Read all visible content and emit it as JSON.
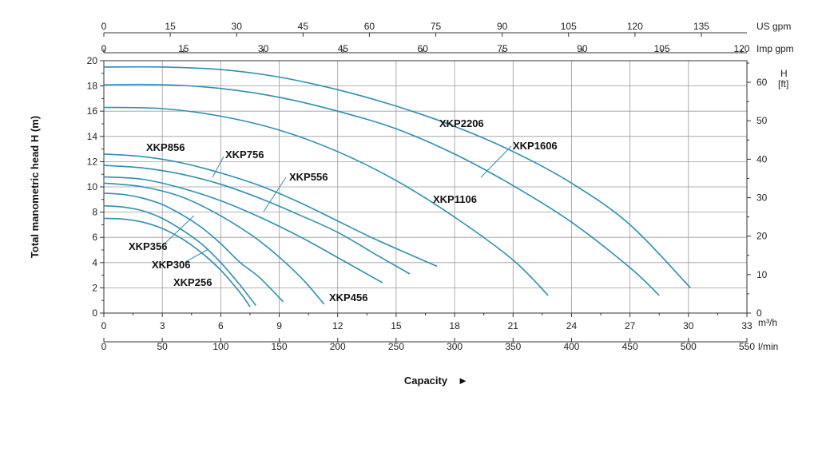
{
  "chart_data": {
    "type": "line",
    "xlabel": "Capacity",
    "ylabel": "Total manometric head H (m)",
    "xlim": [
      0,
      33
    ],
    "ylim": [
      0,
      20
    ],
    "x_unit": "m³/h",
    "x_ticks": [
      0,
      3,
      6,
      9,
      12,
      15,
      18,
      21,
      24,
      27,
      30,
      33
    ],
    "y_ticks": [
      0,
      2,
      4,
      6,
      8,
      10,
      12,
      14,
      16,
      18,
      20
    ],
    "secondary_axes": {
      "lmin": {
        "unit": "l/min",
        "ticks": [
          0,
          50,
          100,
          150,
          200,
          250,
          300,
          350,
          400,
          450,
          500,
          550
        ]
      },
      "us_gpm": {
        "unit": "US gpm",
        "ticks": [
          0,
          15,
          30,
          45,
          60,
          75,
          90,
          105,
          120,
          135
        ]
      },
      "imp_gpm": {
        "unit": "Imp gpm",
        "ticks": [
          0,
          15,
          30,
          45,
          60,
          75,
          90,
          105,
          120
        ]
      },
      "feet": {
        "unit_top": "H",
        "unit_bottom": "[ft]",
        "ticks": [
          0,
          10,
          20,
          30,
          40,
          50,
          60
        ]
      }
    },
    "grid": true,
    "series": [
      {
        "name": "XKP256",
        "x": [
          0,
          1,
          2,
          3,
          4,
          5,
          6,
          7,
          7.5
        ],
        "y": [
          7.5,
          7.45,
          7.2,
          6.7,
          5.9,
          4.8,
          3.4,
          1.6,
          0.5
        ]
      },
      {
        "name": "XKP306",
        "x": [
          0,
          1,
          2,
          3,
          4,
          5,
          6,
          7,
          7.8
        ],
        "y": [
          8.5,
          8.4,
          8.1,
          7.5,
          6.6,
          5.5,
          4.0,
          2.2,
          0.6
        ]
      },
      {
        "name": "XKP356",
        "x": [
          0,
          1,
          2,
          3,
          4,
          5,
          6,
          7,
          8,
          9.2
        ],
        "y": [
          9.5,
          9.4,
          9.1,
          8.6,
          7.8,
          6.8,
          5.5,
          4.0,
          2.8,
          0.9
        ]
      },
      {
        "name": "XKP456",
        "x": [
          0,
          2,
          4,
          6,
          8,
          10,
          11.3
        ],
        "y": [
          10.3,
          10.0,
          9.2,
          7.7,
          5.7,
          3.0,
          0.7
        ]
      },
      {
        "name": "XKP556",
        "x": [
          0,
          2,
          4,
          6,
          8,
          10,
          12,
          14.3
        ],
        "y": [
          10.8,
          10.6,
          9.9,
          8.9,
          7.6,
          6.1,
          4.4,
          2.4
        ]
      },
      {
        "name": "XKP756",
        "x": [
          0,
          2,
          4,
          6,
          8,
          10,
          12,
          14,
          15.7
        ],
        "y": [
          11.7,
          11.5,
          11.0,
          10.2,
          9.1,
          7.8,
          6.4,
          4.6,
          3.1
        ]
      },
      {
        "name": "XKP856",
        "x": [
          0,
          2,
          4,
          6,
          8,
          10,
          12,
          14,
          17.1
        ],
        "y": [
          12.6,
          12.4,
          11.9,
          11.1,
          10.1,
          8.8,
          7.3,
          5.8,
          3.7
        ]
      },
      {
        "name": "XKP1106",
        "x": [
          0,
          3,
          6,
          9,
          12,
          15,
          18,
          21,
          22.8
        ],
        "y": [
          16.3,
          16.2,
          15.6,
          14.5,
          12.8,
          10.5,
          7.6,
          4.2,
          1.4
        ]
      },
      {
        "name": "XKP1606",
        "x": [
          0,
          3,
          6,
          9,
          12,
          15,
          18,
          21,
          24,
          27,
          28.5
        ],
        "y": [
          18.1,
          18.1,
          17.8,
          17.1,
          16.0,
          14.6,
          12.6,
          10.1,
          7.2,
          3.6,
          1.4
        ]
      },
      {
        "name": "XKP2206",
        "x": [
          0,
          3,
          6,
          9,
          12,
          15,
          18,
          21,
          24,
          27,
          30.1
        ],
        "y": [
          19.5,
          19.5,
          19.3,
          18.7,
          17.7,
          16.4,
          14.8,
          12.8,
          10.3,
          7.0,
          2.0
        ]
      }
    ]
  }
}
